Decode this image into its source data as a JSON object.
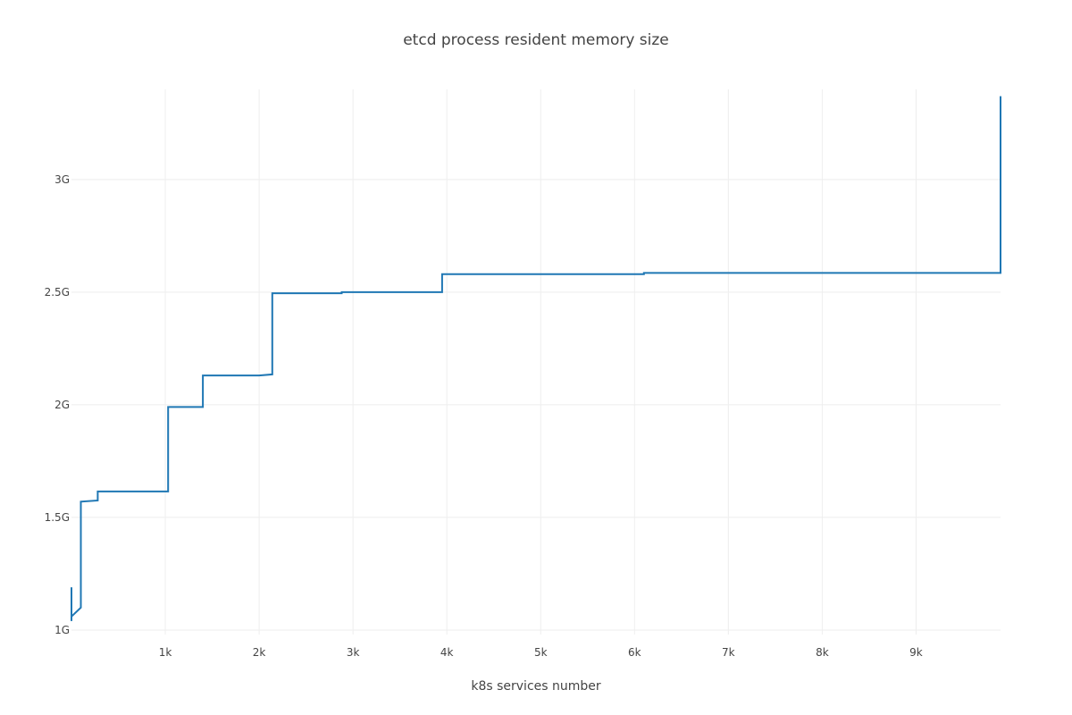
{
  "chart_data": {
    "type": "line",
    "line_shape": "step",
    "title": "etcd process resident memory size",
    "xlabel": "k8s services number",
    "ylabel": "",
    "xlim": [
      0,
      9900
    ],
    "ylim": [
      0.98,
      3.4
    ],
    "grid": true,
    "x_ticks": [
      {
        "value": 1000,
        "label": "1k"
      },
      {
        "value": 2000,
        "label": "2k"
      },
      {
        "value": 3000,
        "label": "3k"
      },
      {
        "value": 4000,
        "label": "4k"
      },
      {
        "value": 5000,
        "label": "5k"
      },
      {
        "value": 6000,
        "label": "6k"
      },
      {
        "value": 7000,
        "label": "7k"
      },
      {
        "value": 8000,
        "label": "8k"
      },
      {
        "value": 9000,
        "label": "9k"
      }
    ],
    "y_ticks": [
      {
        "value": 1.0,
        "label": "1G"
      },
      {
        "value": 1.5,
        "label": "1.5G"
      },
      {
        "value": 2.0,
        "label": "2G"
      },
      {
        "value": 2.5,
        "label": "2.5G"
      },
      {
        "value": 3.0,
        "label": "3G"
      }
    ],
    "series": [
      {
        "color": "#1f77b4",
        "x": [
          0,
          0,
          0,
          100,
          100,
          280,
          280,
          1030,
          1030,
          1400,
          1400,
          2000,
          2140,
          2140,
          2880,
          2880,
          3950,
          3950,
          6100,
          6100,
          9900,
          9900
        ],
        "y": [
          1.19,
          1.04,
          1.06,
          1.1,
          1.57,
          1.575,
          1.615,
          1.615,
          1.99,
          1.99,
          2.13,
          2.13,
          2.135,
          2.495,
          2.495,
          2.5,
          2.5,
          2.58,
          2.58,
          2.585,
          2.585,
          3.37
        ]
      }
    ]
  }
}
